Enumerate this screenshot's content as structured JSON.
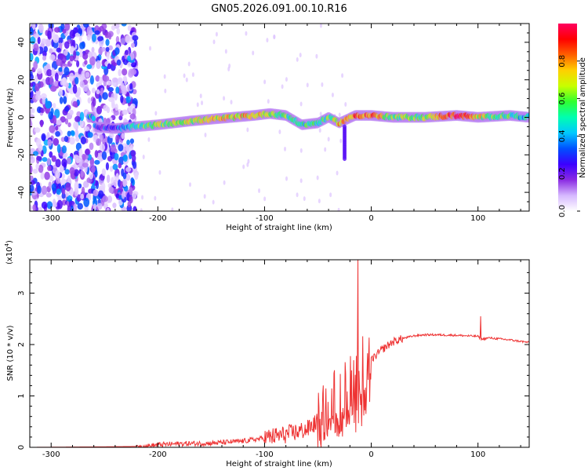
{
  "title": "GN05.2026.091.00.10.R16",
  "chart_data": [
    {
      "type": "heatmap",
      "xlabel": "Height of straight line (km)",
      "ylabel": "Frequency (Hz)",
      "xlim": [
        -320,
        148
      ],
      "ylim": [
        -50,
        50
      ],
      "xticks": [
        -300,
        -200,
        -100,
        0,
        100
      ],
      "yticks": [
        40,
        20,
        0,
        -20,
        -40
      ],
      "colorbar": {
        "label": "Normalized spectral amplitude",
        "range": [
          0,
          1
        ],
        "ticks": [
          0.0,
          0.2,
          0.4,
          0.6,
          0.8
        ],
        "colormap": [
          "#ffffff",
          "#d6b8ff",
          "#8a2be2",
          "#3b00ff",
          "#0050ff",
          "#00c8ff",
          "#00ffb0",
          "#30ff30",
          "#c8ff00",
          "#ffd000",
          "#ff6000",
          "#ff0000",
          "#ff0060"
        ]
      },
      "ridge": [
        {
          "x": -260,
          "freq": -5,
          "amp": 0.3
        },
        {
          "x": -240,
          "freq": -6,
          "amp": 0.25
        },
        {
          "x": -220,
          "freq": -5,
          "amp": 0.55
        },
        {
          "x": -200,
          "freq": -4,
          "amp": 0.6
        },
        {
          "x": -170,
          "freq": -2,
          "amp": 0.65
        },
        {
          "x": -150,
          "freq": -1,
          "amp": 0.7
        },
        {
          "x": -130,
          "freq": 0,
          "amp": 0.7
        },
        {
          "x": -110,
          "freq": 1,
          "amp": 0.75
        },
        {
          "x": -95,
          "freq": 2,
          "amp": 0.6
        },
        {
          "x": -80,
          "freq": 1,
          "amp": 0.55
        },
        {
          "x": -65,
          "freq": -4,
          "amp": 0.5
        },
        {
          "x": -50,
          "freq": -3,
          "amp": 0.5
        },
        {
          "x": -40,
          "freq": 0,
          "amp": 0.55
        },
        {
          "x": -30,
          "freq": -3,
          "amp": 0.75
        },
        {
          "x": -15,
          "freq": 1,
          "amp": 0.8
        },
        {
          "x": 0,
          "freq": 1,
          "amp": 0.85
        },
        {
          "x": 20,
          "freq": 0,
          "amp": 0.6
        },
        {
          "x": 50,
          "freq": 0,
          "amp": 0.6
        },
        {
          "x": 80,
          "freq": 1,
          "amp": 0.95
        },
        {
          "x": 100,
          "freq": 0,
          "amp": 0.7
        },
        {
          "x": 130,
          "freq": 1,
          "amp": 0.5
        },
        {
          "x": 148,
          "freq": 0,
          "amp": 0.45
        }
      ]
    },
    {
      "type": "line",
      "xlabel": "Height of straight line (km)",
      "ylabel": "SNR (10 * v/v)",
      "yscale_label": "(x10",
      "yscale_exp": "4",
      "yscale_close": ")",
      "xlim": [
        -320,
        148
      ],
      "ylim": [
        0,
        3.65
      ],
      "xticks": [
        -300,
        -200,
        -100,
        0,
        100
      ],
      "yticks": [
        0,
        1,
        2,
        3
      ],
      "color": "#ee3333",
      "x": [
        -320,
        -250,
        -210,
        -200,
        -180,
        -150,
        -120,
        -100,
        -80,
        -60,
        -50,
        -40,
        -30,
        -20,
        -15,
        -10,
        -5,
        0,
        10,
        20,
        30,
        40,
        50,
        60,
        80,
        100,
        103,
        110,
        130,
        148
      ],
      "y": [
        0.0,
        0.01,
        0.02,
        0.05,
        0.07,
        0.08,
        0.12,
        0.18,
        0.25,
        0.35,
        0.5,
        0.7,
        0.95,
        1.1,
        1.4,
        1.5,
        1.6,
        1.7,
        1.9,
        2.05,
        2.12,
        2.17,
        2.19,
        2.19,
        2.18,
        2.16,
        2.1,
        2.13,
        2.09,
        2.04
      ]
    }
  ]
}
